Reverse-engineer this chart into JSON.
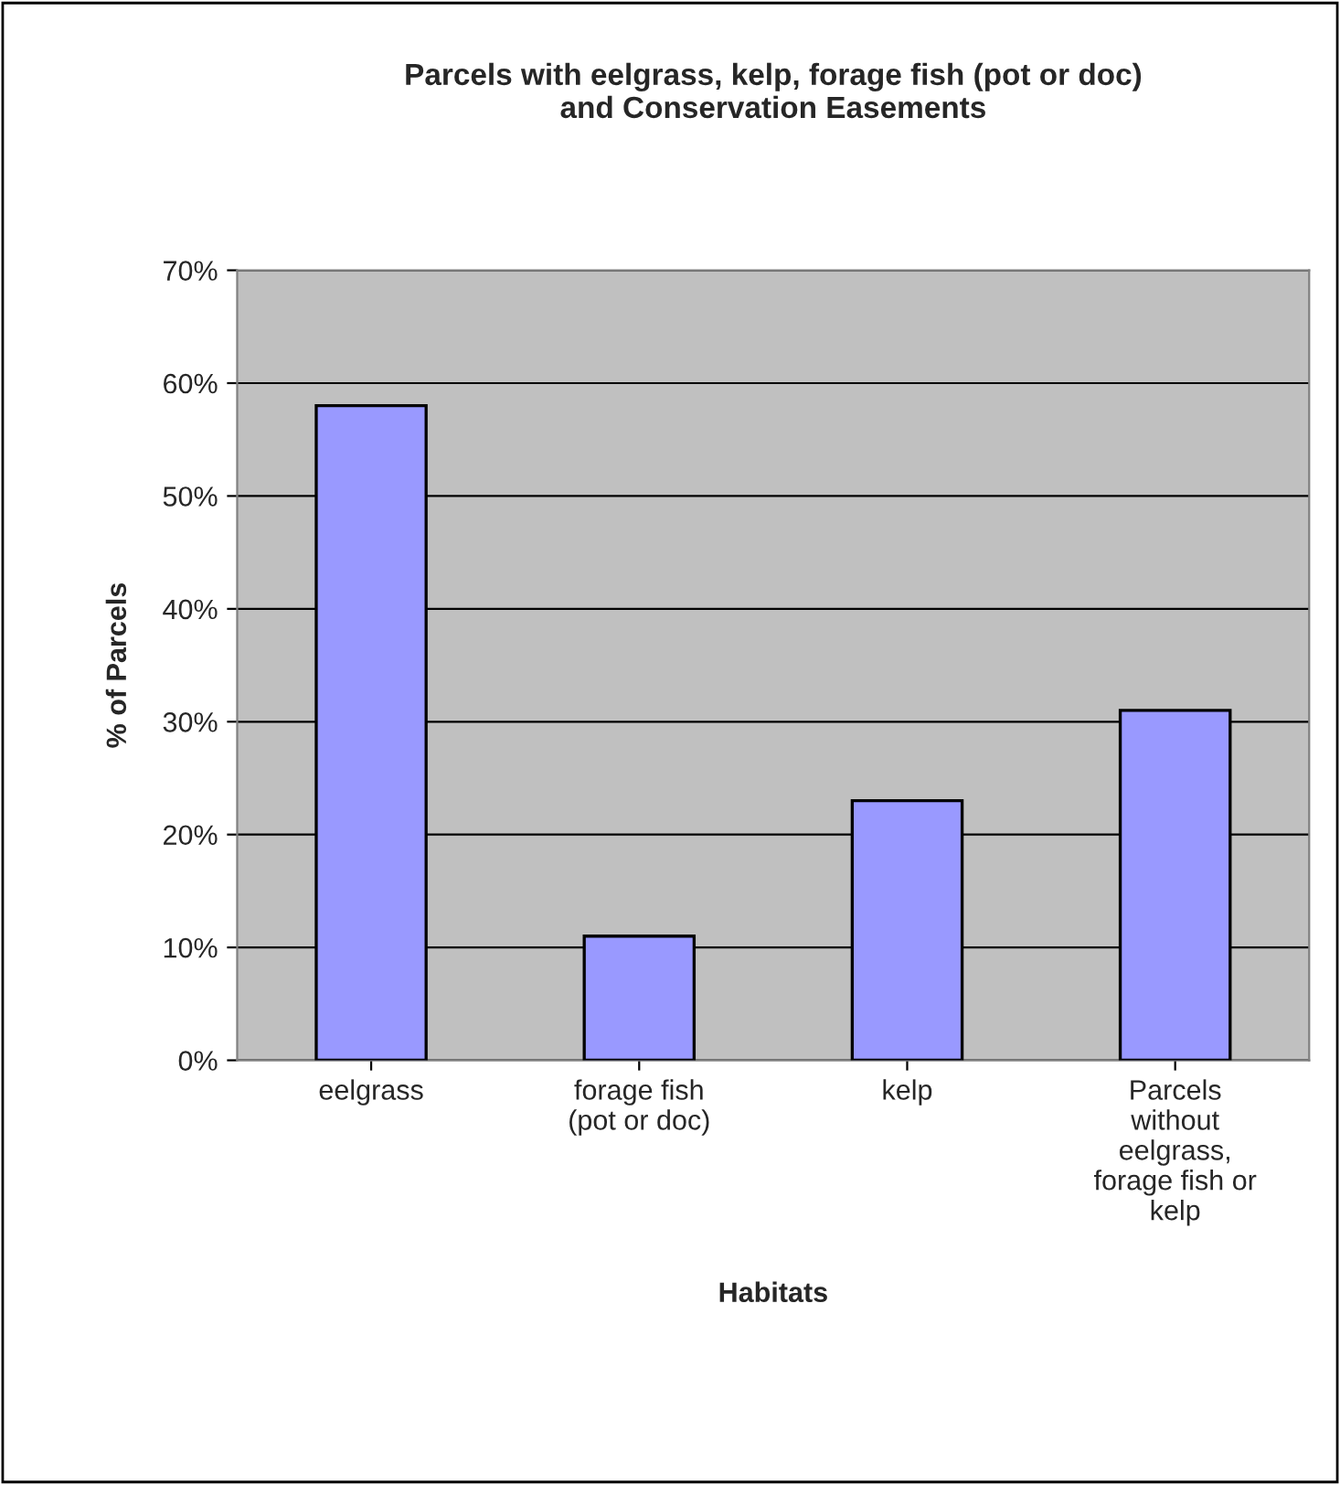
{
  "chart_data": {
    "type": "bar",
    "title": "Parcels with eelgrass, kelp, forage fish (pot or doc)\nand Conservation Easements",
    "xlabel": "Habitats",
    "ylabel": "% of Parcels",
    "categories": [
      "eelgrass",
      "forage fish\n(pot or doc)",
      "kelp",
      "Parcels\nwithout\neelgrass,\nforage fish or\nkelp"
    ],
    "values": [
      58,
      11,
      23,
      31
    ],
    "color": "#9999ff",
    "ylim": [
      0,
      70
    ],
    "yticks": [
      {
        "value": 0,
        "label": "0%"
      },
      {
        "value": 10,
        "label": "10%"
      },
      {
        "value": 20,
        "label": "20%"
      },
      {
        "value": 30,
        "label": "30%"
      },
      {
        "value": 40,
        "label": "40%"
      },
      {
        "value": 50,
        "label": "50%"
      },
      {
        "value": 60,
        "label": "60%"
      },
      {
        "value": 70,
        "label": "70%"
      }
    ],
    "grid": "y",
    "legend": false
  }
}
